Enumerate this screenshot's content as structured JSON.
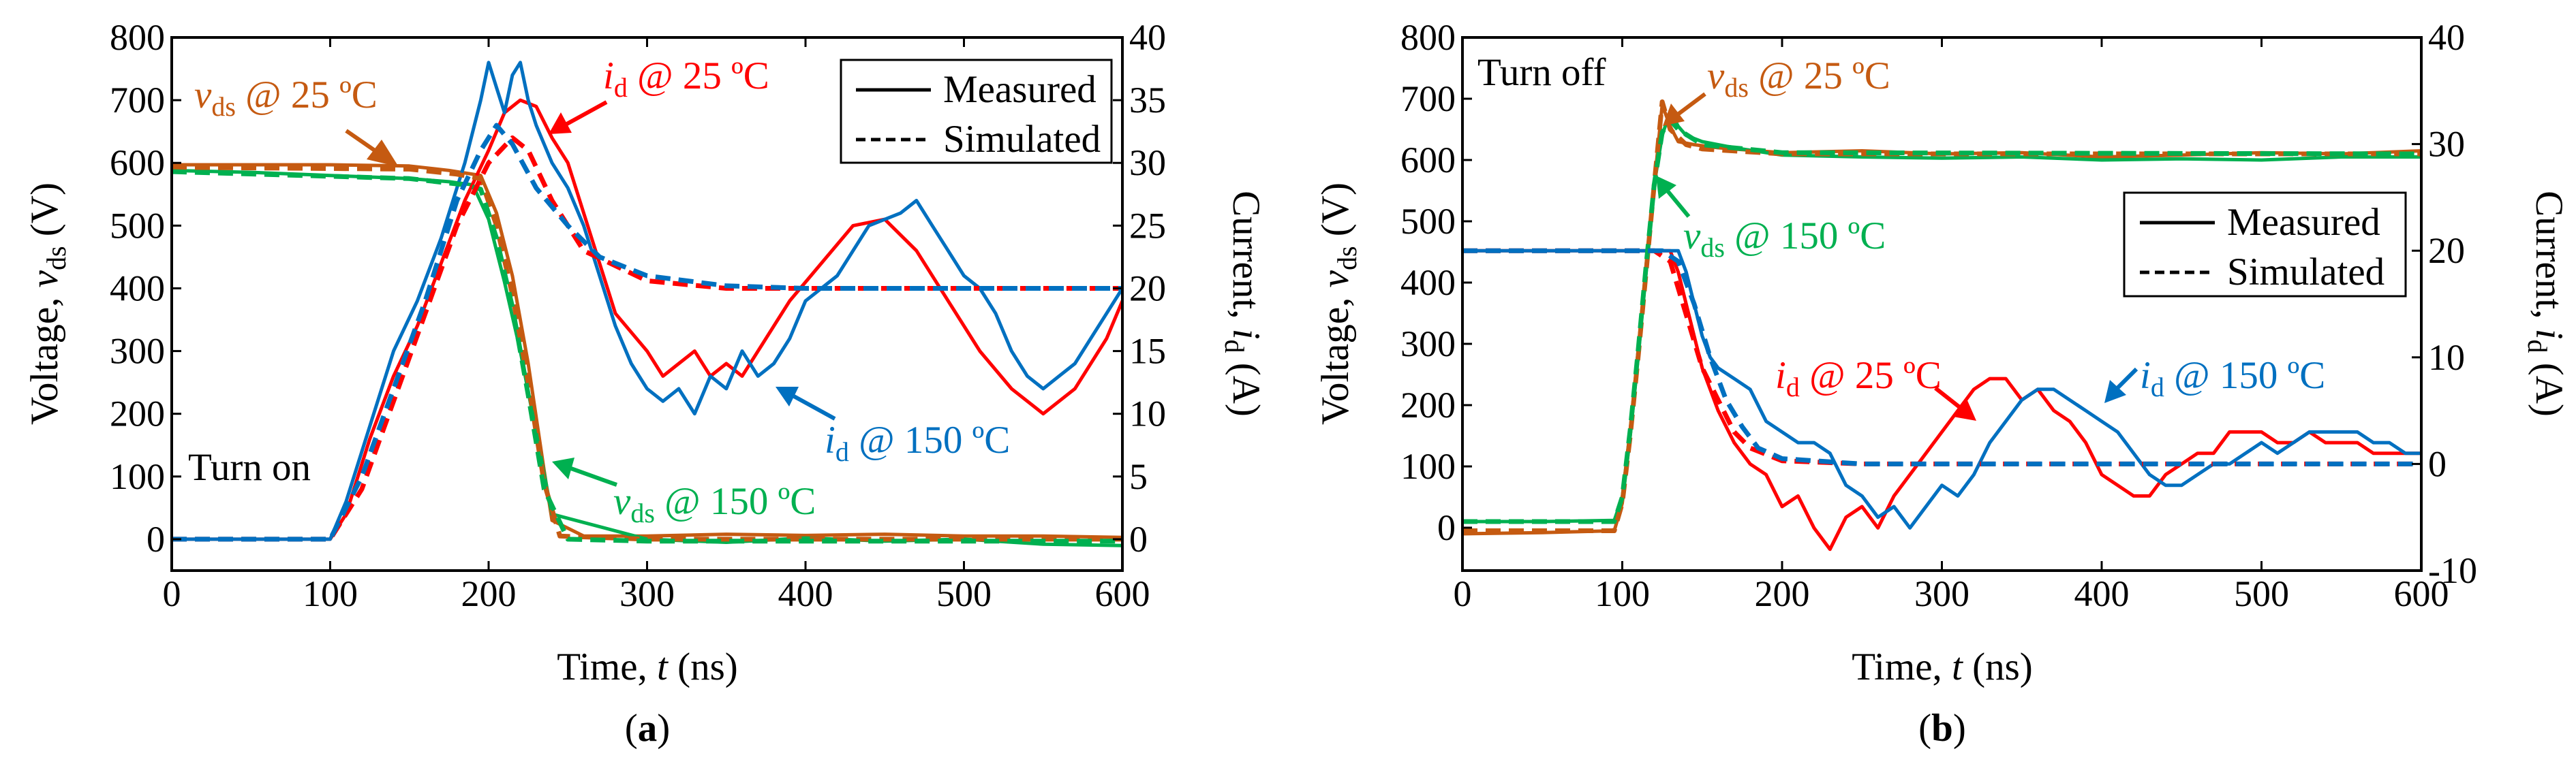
{
  "chart_data": [
    {
      "type": "line",
      "id": "a",
      "caption": {
        "pre": "(",
        "bold": "a",
        "post": ")"
      },
      "panel_label": "Turn on",
      "x_axis": {
        "label_pre": "Time, ",
        "label_var": "t",
        "label_post": " (ns)",
        "range": [
          0,
          600
        ],
        "ticks": [
          "0",
          "100",
          "200",
          "300",
          "400",
          "500",
          "600"
        ]
      },
      "y_left": {
        "label_pre": "Voltage, ",
        "label_var": "v",
        "label_sub": "ds",
        "label_post": " (V)",
        "range": [
          -50,
          800
        ],
        "ticks": [
          "0",
          "100",
          "200",
          "300",
          "400",
          "500",
          "600",
          "700",
          "800"
        ]
      },
      "y_right": {
        "label_pre": "Current, ",
        "label_var": "i",
        "label_sub": "d",
        "label_post": " (A)",
        "range": [
          -2.5,
          40
        ],
        "ticks": [
          "0",
          "5",
          "10",
          "15",
          "20",
          "25",
          "30",
          "35",
          "40"
        ]
      },
      "legend": {
        "solid": "Measured",
        "dashed": "Simulated"
      },
      "annotations": [
        {
          "var": "v",
          "sub": "ds",
          "rest": " @ 25 ºC",
          "color": "#c55a11"
        },
        {
          "var": "i",
          "sub": "d",
          "rest": " @ 25 ºC",
          "color": "#ff0000"
        },
        {
          "var": "i",
          "sub": "d",
          "rest": " @ 150 ºC",
          "color": "#0070c0"
        },
        {
          "var": "v",
          "sub": "ds",
          "rest": " @ 150 ºC",
          "color": "#00b050"
        }
      ],
      "series": [
        {
          "name": "vds @ 25 ºC measured",
          "axis": "left",
          "color": "#c55a11",
          "style": "solid",
          "x": [
            0,
            100,
            150,
            175,
            195,
            205,
            215,
            225,
            235,
            240,
            260,
            300,
            350,
            400,
            450,
            500,
            550,
            600
          ],
          "y": [
            597,
            597,
            595,
            588,
            580,
            520,
            420,
            280,
            110,
            30,
            5,
            5,
            8,
            6,
            8,
            5,
            5,
            3
          ]
        },
        {
          "name": "vds @ 25 ºC simulated",
          "axis": "left",
          "color": "#c55a11",
          "style": "dashed",
          "x": [
            0,
            150,
            180,
            195,
            205,
            215,
            225,
            235,
            245,
            300,
            600
          ],
          "y": [
            593,
            590,
            582,
            575,
            500,
            390,
            250,
            90,
            5,
            0,
            0
          ]
        },
        {
          "name": "vds @ 150 ºC measured",
          "axis": "left",
          "color": "#00b050",
          "style": "solid",
          "x": [
            0,
            50,
            100,
            150,
            175,
            190,
            200,
            210,
            220,
            230,
            240,
            300,
            350,
            400,
            450,
            500,
            550,
            600
          ],
          "y": [
            588,
            585,
            580,
            575,
            570,
            565,
            510,
            410,
            300,
            170,
            40,
            0,
            -5,
            2,
            -3,
            0,
            -8,
            -10
          ]
        },
        {
          "name": "vds @ 150 ºC simulated",
          "axis": "left",
          "color": "#00b050",
          "style": "dashed",
          "x": [
            0,
            150,
            185,
            195,
            205,
            215,
            225,
            235,
            250,
            300,
            600
          ],
          "y": [
            586,
            575,
            565,
            558,
            480,
            370,
            230,
            80,
            0,
            -3,
            -3
          ]
        },
        {
          "name": "id @ 25 ºC measured",
          "axis": "right",
          "color": "#ff0000",
          "style": "solid",
          "x": [
            0,
            100,
            110,
            125,
            140,
            155,
            170,
            185,
            200,
            210,
            220,
            230,
            240,
            250,
            260,
            270,
            280,
            300,
            310,
            320,
            330,
            340,
            350,
            360,
            370,
            390,
            410,
            430,
            450,
            470,
            490,
            510,
            530,
            550,
            570,
            590,
            600
          ],
          "y": [
            0,
            0,
            2,
            8,
            13,
            17,
            22,
            27,
            31,
            34,
            35,
            34.5,
            32,
            30,
            26,
            22,
            18,
            15,
            13,
            14,
            15,
            13,
            14,
            13,
            15,
            19,
            22,
            25,
            25.5,
            23,
            19,
            15,
            12,
            10,
            12,
            16,
            19
          ]
        },
        {
          "name": "id @ 25 ºC simulated",
          "axis": "right",
          "color": "#ff0000",
          "style": "dashed",
          "x": [
            0,
            100,
            120,
            140,
            160,
            180,
            200,
            215,
            225,
            240,
            260,
            300,
            350,
            400,
            600
          ],
          "y": [
            0,
            0,
            4,
            11,
            18,
            25,
            30,
            32,
            31,
            27,
            23,
            20.6,
            20,
            20,
            20
          ]
        },
        {
          "name": "id @ 150 ºC measured",
          "axis": "right",
          "color": "#0070c0",
          "style": "solid",
          "x": [
            0,
            100,
            110,
            125,
            140,
            155,
            170,
            185,
            195,
            200,
            205,
            210,
            215,
            220,
            225,
            230,
            240,
            250,
            260,
            270,
            280,
            290,
            300,
            310,
            320,
            330,
            340,
            350,
            360,
            370,
            380,
            390,
            400,
            420,
            440,
            460,
            470,
            480,
            490,
            500,
            510,
            520,
            530,
            540,
            550,
            560,
            570,
            580,
            590,
            600
          ],
          "y": [
            0,
            0,
            3,
            9,
            15,
            19,
            24,
            30,
            35,
            38,
            36,
            34,
            37,
            38,
            35,
            33,
            30,
            28,
            25,
            21,
            17,
            14,
            12,
            11,
            12,
            10,
            13,
            12,
            15,
            13,
            14,
            16,
            19,
            21,
            25,
            26,
            27,
            25,
            23,
            21,
            20,
            18,
            15,
            13,
            12,
            13,
            14,
            16,
            18,
            20
          ]
        },
        {
          "name": "id @ 150 ºC simulated",
          "axis": "right",
          "color": "#0070c0",
          "style": "dashed",
          "x": [
            0,
            100,
            120,
            140,
            160,
            180,
            195,
            205,
            215,
            230,
            250,
            270,
            300,
            350,
            400,
            600
          ],
          "y": [
            0,
            0,
            5,
            12,
            19,
            27,
            31,
            33,
            31.5,
            28,
            25,
            22.5,
            21,
            20.2,
            20,
            20
          ]
        }
      ]
    },
    {
      "type": "line",
      "id": "b",
      "caption": {
        "pre": "(",
        "bold": "b",
        "post": ")"
      },
      "panel_label": "Turn off",
      "x_axis": {
        "label_pre": "Time, ",
        "label_var": "t",
        "label_post": " (ns)",
        "range": [
          0,
          600
        ],
        "ticks": [
          "0",
          "100",
          "200",
          "300",
          "400",
          "500",
          "600"
        ]
      },
      "y_left": {
        "label_pre": "Voltage, ",
        "label_var": "v",
        "label_sub": "ds",
        "label_post": " (V)",
        "range": [
          -70,
          800
        ],
        "ticks": [
          "0",
          "100",
          "200",
          "300",
          "400",
          "500",
          "600",
          "700",
          "800"
        ]
      },
      "y_right": {
        "label_pre": "Current, ",
        "label_var": "i",
        "label_sub": "d",
        "label_post": " (A)",
        "range": [
          -10,
          40
        ],
        "ticks": [
          "-10",
          "0",
          "10",
          "20",
          "30",
          "40"
        ]
      },
      "legend": {
        "solid": "Measured",
        "dashed": "Simulated"
      },
      "annotations": [
        {
          "var": "v",
          "sub": "ds",
          "rest": " @ 25 ºC",
          "color": "#c55a11"
        },
        {
          "var": "v",
          "sub": "ds",
          "rest": " @ 150 ºC",
          "color": "#00b050"
        },
        {
          "var": "i",
          "sub": "d",
          "rest": " @ 25 ºC",
          "color": "#ff0000"
        },
        {
          "var": "i",
          "sub": "d",
          "rest": " @ 150 ºC",
          "color": "#0070c0"
        }
      ],
      "series": [
        {
          "name": "vds @ 25 ºC measured",
          "axis": "left",
          "color": "#c55a11",
          "style": "solid",
          "x": [
            0,
            50,
            95,
            100,
            105,
            110,
            115,
            120,
            125,
            130,
            135,
            145,
            160,
            200,
            250,
            300,
            350,
            400,
            450,
            500,
            550,
            600
          ],
          "y": [
            -10,
            -8,
            -5,
            40,
            150,
            280,
            420,
            560,
            690,
            655,
            630,
            625,
            620,
            612,
            615,
            610,
            612,
            605,
            608,
            612,
            610,
            615
          ]
        },
        {
          "name": "vds @ 25 ºC simulated",
          "axis": "left",
          "color": "#c55a11",
          "style": "dashed",
          "x": [
            0,
            95,
            100,
            105,
            110,
            115,
            120,
            125,
            130,
            140,
            150,
            200,
            600
          ],
          "y": [
            -5,
            -5,
            40,
            150,
            280,
            420,
            560,
            695,
            650,
            625,
            618,
            610,
            610
          ]
        },
        {
          "name": "vds @ 150 ºC measured",
          "axis": "left",
          "color": "#00b050",
          "style": "solid",
          "x": [
            0,
            50,
            95,
            100,
            105,
            110,
            115,
            120,
            125,
            130,
            135,
            140,
            150,
            170,
            200,
            250,
            300,
            350,
            400,
            450,
            500,
            550,
            600
          ],
          "y": [
            10,
            10,
            12,
            50,
            160,
            290,
            430,
            560,
            640,
            680,
            655,
            640,
            630,
            620,
            608,
            605,
            603,
            605,
            600,
            602,
            600,
            605,
            605
          ]
        },
        {
          "name": "vds @ 150 ºC simulated",
          "axis": "left",
          "color": "#00b050",
          "style": "dashed",
          "x": [
            0,
            95,
            100,
            105,
            110,
            115,
            120,
            125,
            130,
            135,
            150,
            200,
            600
          ],
          "y": [
            10,
            10,
            50,
            160,
            290,
            430,
            560,
            645,
            665,
            650,
            625,
            612,
            610
          ]
        },
        {
          "name": "id @ 25 ºC measured",
          "axis": "right",
          "color": "#ff0000",
          "style": "solid",
          "x": [
            0,
            100,
            130,
            135,
            140,
            145,
            150,
            155,
            160,
            170,
            180,
            190,
            200,
            210,
            220,
            230,
            240,
            250,
            260,
            270,
            280,
            290,
            300,
            310,
            320,
            330,
            340,
            350,
            360,
            370,
            380,
            390,
            400,
            410,
            420,
            430,
            440,
            450,
            460,
            470,
            480,
            490,
            500,
            510,
            520,
            530,
            540,
            550,
            560,
            570,
            580,
            590,
            600
          ],
          "y": [
            20,
            20,
            20,
            18,
            15,
            12,
            9,
            7,
            5,
            2,
            0,
            -1,
            -4,
            -3,
            -6,
            -8,
            -5,
            -4,
            -6,
            -3,
            -1,
            1,
            3,
            5,
            7,
            8,
            8,
            6,
            7,
            5,
            4,
            2,
            -1,
            -2,
            -3,
            -3,
            -1,
            0,
            1,
            1,
            3,
            3,
            3,
            2,
            2,
            3,
            2,
            2,
            2,
            1,
            1,
            1,
            1
          ]
        },
        {
          "name": "id @ 25 ºC simulated",
          "axis": "right",
          "color": "#ff0000",
          "style": "dashed",
          "x": [
            0,
            120,
            130,
            140,
            150,
            160,
            170,
            180,
            200,
            250,
            300,
            600
          ],
          "y": [
            20,
            20,
            19,
            14,
            9,
            6,
            3,
            1.5,
            0.3,
            0,
            0,
            0
          ]
        },
        {
          "name": "id @ 150 ºC measured",
          "axis": "right",
          "color": "#0070c0",
          "style": "solid",
          "x": [
            0,
            100,
            135,
            140,
            145,
            150,
            155,
            160,
            170,
            180,
            190,
            200,
            210,
            220,
            230,
            240,
            250,
            260,
            270,
            280,
            290,
            300,
            310,
            320,
            330,
            340,
            350,
            360,
            370,
            380,
            390,
            400,
            410,
            420,
            430,
            440,
            450,
            460,
            470,
            480,
            490,
            500,
            510,
            520,
            530,
            540,
            550,
            560,
            570,
            580,
            590,
            600
          ],
          "y": [
            20,
            20,
            20,
            18,
            15,
            12,
            10,
            9,
            8,
            7,
            4,
            3,
            2,
            2,
            1,
            -2,
            -3,
            -5,
            -4,
            -6,
            -4,
            -2,
            -3,
            -1,
            2,
            4,
            6,
            7,
            7,
            6,
            5,
            4,
            3,
            1,
            -1,
            -2,
            -2,
            -1,
            0,
            0,
            1,
            2,
            1,
            2,
            3,
            3,
            3,
            3,
            2,
            2,
            1,
            1
          ]
        },
        {
          "name": "id @ 150 ºC simulated",
          "axis": "right",
          "color": "#0070c0",
          "style": "dashed",
          "x": [
            0,
            125,
            135,
            145,
            155,
            165,
            175,
            185,
            200,
            250,
            300,
            600
          ],
          "y": [
            20,
            20,
            19,
            15,
            10,
            6,
            3.5,
            1.5,
            0.5,
            0,
            0,
            0
          ]
        }
      ]
    }
  ]
}
